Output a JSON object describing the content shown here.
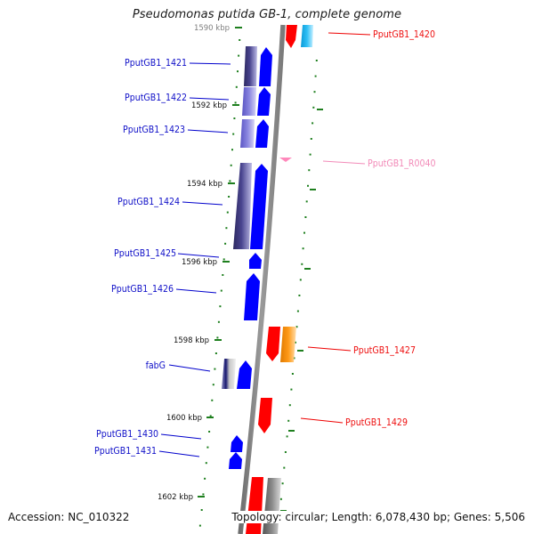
{
  "title": "Pseudomonas putida GB-1, complete genome",
  "accession": "Accession: NC_010322",
  "stats": "Topology: circular; Length: 6,078,430 bp; Genes: 5,506",
  "colors": {
    "background": "#ffffff",
    "backbone": "#8c8c8c",
    "tick": "#1e7f1e",
    "forward_gene": "#0000ff",
    "reverse_gene": "#ff0000",
    "cds_track_dark": "#3a3577",
    "cds_track_light": "#6f6ad6",
    "cyan_feature": "#1cb6f2",
    "orange_feature": "#ff8c00",
    "gray_feature": "#7a7a7a",
    "rna_feature": "#ff88bb",
    "forward_label": "#1010c8",
    "reverse_label": "#ee1010",
    "rna_label": "#f28ab8"
  },
  "scale_labels": [
    "1590 kbp",
    "1592 kbp",
    "1594 kbp",
    "1596 kbp",
    "1598 kbp",
    "1600 kbp",
    "1602 kbp"
  ],
  "forward_labels": [
    "PputGB1_1421",
    "PputGB1_1422",
    "PputGB1_1423",
    "PputGB1_1424",
    "PputGB1_1425",
    "PputGB1_1426",
    "fabG",
    "PputGB1_1430",
    "PputGB1_1431"
  ],
  "reverse_labels": [
    "PputGB1_1420",
    "PputGB1_R0040",
    "PputGB1_1427",
    "PputGB1_1429"
  ]
}
